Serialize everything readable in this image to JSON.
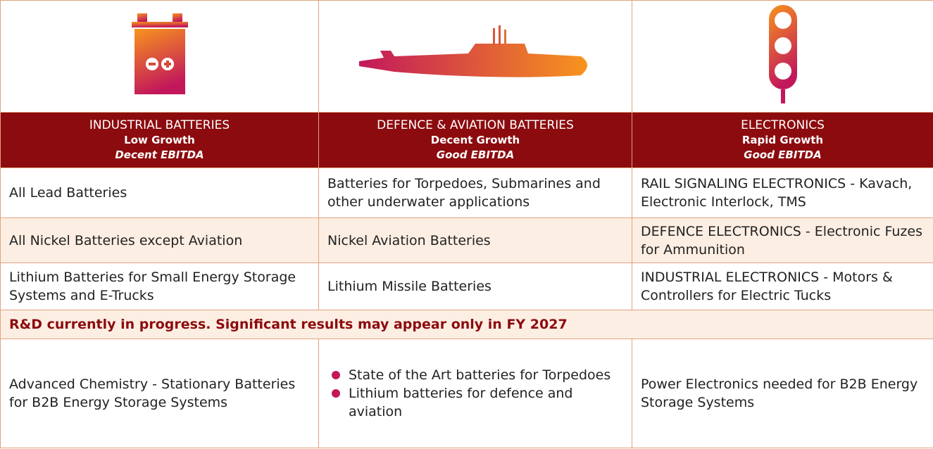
{
  "header": {
    "columns": [
      {
        "name": "INDUSTRIAL BATTERIES",
        "growth": "Low Growth",
        "ebitda": "Decent EBITDA"
      },
      {
        "name": "DEFENCE & AVIATION BATTERIES",
        "growth": "Decent Growth",
        "ebitda": "Good EBITDA"
      },
      {
        "name": "ELECTRONICS",
        "growth": "Rapid Growth",
        "ebitda": "Good EBITDA"
      }
    ]
  },
  "table": {
    "rows": [
      [
        "All Lead Batteries",
        "Batteries for Torpedoes, Submarines and other underwater applications",
        "RAIL SIGNALING ELECTRONICS - Kavach, Electronic Interlock, TMS"
      ],
      [
        "All Nickel Batteries except Aviation",
        "Nickel Aviation Batteries",
        "DEFENCE  ELECTRONICS - Electronic Fuzes for Ammunition"
      ],
      [
        "Lithium Batteries for Small Energy Storage Systems and E-Trucks",
        "Lithium Missile Batteries",
        "INDUSTRIAL ELECTRONICS - Motors & Controllers for Electric Tucks"
      ]
    ]
  },
  "rnd": {
    "note": "R&D currently in progress.  Significant results may appear only in FY 2027",
    "col0": "Advanced Chemistry - Stationary Batteries for B2B Energy Storage Systems",
    "col1": [
      "State of the Art batteries for Torpedoes",
      "Lithium batteries for defence and aviation"
    ],
    "col2": "Power Electronics needed for B2B Energy Storage Systems"
  }
}
